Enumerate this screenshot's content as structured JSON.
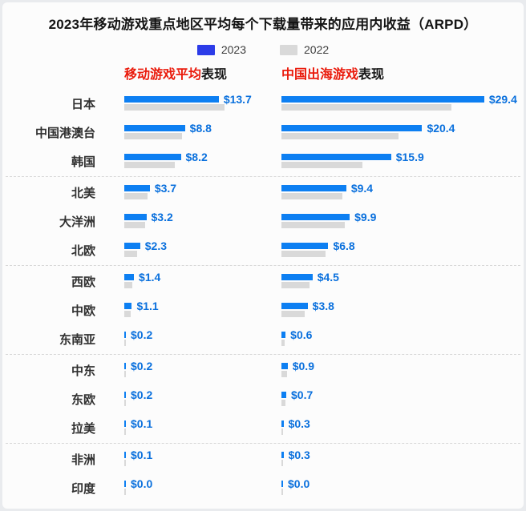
{
  "title": "2023年移动游戏重点地区平均每个下载量带来的应用内收益（ARPD）",
  "legend": {
    "items": [
      {
        "label": "2023",
        "swatch_color": "#2c3ce8"
      },
      {
        "label": "2022",
        "swatch_color": "#d9d9d9"
      }
    ]
  },
  "panel_headers": [
    {
      "highlight": "移动游戏平均",
      "rest": "表现",
      "highlight_color": "#ea1b0c"
    },
    {
      "highlight": "中国出海游戏",
      "rest": "表现",
      "highlight_color": "#ea1b0c"
    }
  ],
  "colors": {
    "bar_2023": "#0d7ff2",
    "bar_2022": "#d9d9d9",
    "value_label": "#0a70dd",
    "legend_2023_swatch": "#2c3ce8",
    "separator": "#d7d7d7",
    "background": "#fcfcfc"
  },
  "chart_data": {
    "type": "bar",
    "orientation": "horizontal",
    "title": "2023年移动游戏重点地区平均每个下载量带来的应用内收益（ARPD）",
    "value_prefix": "$",
    "unit": "USD per download (ARPD)",
    "legend": [
      "2023",
      "2022"
    ],
    "legend_position": "top-center",
    "grid": false,
    "categories": [
      "日本",
      "中国港澳台",
      "韩国",
      "北美",
      "大洋洲",
      "北欧",
      "西欧",
      "中欧",
      "东南亚",
      "中东",
      "东欧",
      "拉美",
      "非洲",
      "印度"
    ],
    "group_separator_after_indices": [
      2,
      5,
      8,
      11
    ],
    "panels": [
      {
        "name": "移动游戏平均表现",
        "series": [
          {
            "name": "2023",
            "labeled": true,
            "values": [
              13.7,
              8.8,
              8.2,
              3.7,
              3.2,
              2.3,
              1.4,
              1.1,
              0.2,
              0.2,
              0.2,
              0.1,
              0.1,
              0.0
            ]
          },
          {
            "name": "2022",
            "labeled": false,
            "note": "values estimated from bar lengths; not labeled in image",
            "values": [
              14.5,
              8.4,
              7.3,
              3.4,
              3.0,
              1.9,
              1.2,
              0.9,
              0.2,
              0.2,
              0.2,
              0.1,
              0.1,
              0.0
            ]
          }
        ]
      },
      {
        "name": "中国出海游戏表现",
        "series": [
          {
            "name": "2023",
            "labeled": true,
            "values": [
              29.4,
              20.4,
              15.9,
              9.4,
              9.9,
              6.8,
              4.5,
              3.8,
              0.6,
              0.9,
              0.7,
              0.3,
              0.3,
              0.0
            ]
          },
          {
            "name": "2022",
            "labeled": false,
            "note": "values estimated from bar lengths; not labeled in image",
            "values": [
              24.6,
              17.0,
              11.8,
              8.8,
              9.2,
              6.4,
              4.1,
              3.4,
              0.5,
              0.8,
              0.6,
              0.2,
              0.2,
              0.0
            ]
          }
        ]
      }
    ]
  }
}
